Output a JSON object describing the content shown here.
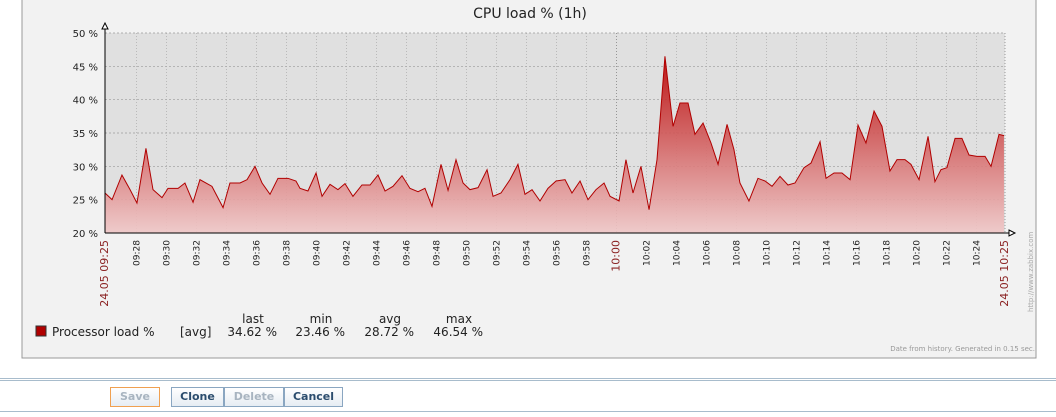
{
  "chart_data": {
    "type": "area",
    "title": "CPU load % (1h)",
    "x": [
      565.9,
      566.37,
      567.03,
      567.57,
      568.03,
      568.63,
      569.1,
      569.7,
      570.1,
      570.77,
      571.23,
      571.77,
      572.23,
      573.03,
      573.77,
      574.23,
      574.9,
      575.37,
      575.9,
      576.37,
      576.9,
      577.43,
      578.1,
      578.63,
      578.9,
      579.43,
      579.97,
      580.37,
      580.9,
      581.43,
      581.9,
      582.43,
      583.03,
      583.57,
      584.1,
      584.57,
      585.1,
      585.7,
      586.23,
      586.77,
      587.23,
      587.7,
      588.3,
      588.77,
      589.3,
      589.77,
      590.23,
      590.77,
      591.37,
      591.77,
      592.3,
      592.9,
      593.43,
      593.9,
      594.37,
      594.9,
      595.43,
      595.97,
      596.57,
      597.03,
      597.57,
      598.1,
      598.63,
      599.17,
      599.57,
      600.17,
      600.63,
      601.1,
      601.63,
      602.17,
      602.7,
      603.23,
      603.77,
      604.23,
      604.77,
      605.23,
      605.77,
      606.3,
      606.77,
      607.37,
      607.83,
      608.23,
      608.83,
      609.43,
      609.9,
      610.37,
      610.9,
      611.43,
      611.9,
      612.5,
      612.97,
      613.57,
      613.97,
      614.5,
      615.03,
      615.57,
      616.1,
      616.63,
      617.17,
      617.7,
      618.23,
      618.7,
      619.23,
      619.63,
      620.17,
      620.77,
      621.23,
      621.63,
      622.03,
      622.57,
      623.03,
      623.5,
      624.03,
      624.57,
      624.97,
      625.5,
      625.83
    ],
    "series": [
      {
        "name": "Processor load %",
        "color": "#b00000",
        "values": [
          26,
          25,
          28.7,
          26.5,
          24.5,
          32.7,
          26.5,
          25.3,
          26.7,
          26.7,
          27.5,
          24.6,
          28,
          27,
          23.8,
          27.5,
          27.5,
          28,
          30,
          27.5,
          25.8,
          28.2,
          28.2,
          27.8,
          26.7,
          26.3,
          29,
          25.5,
          27.3,
          26.5,
          27.4,
          25.5,
          27.2,
          27.2,
          28.7,
          26.3,
          27,
          28.6,
          26.7,
          26.2,
          26.7,
          24,
          30.3,
          26.4,
          31,
          27.5,
          26.5,
          26.8,
          29.5,
          25.5,
          26,
          28,
          30.3,
          25.8,
          26.5,
          24.8,
          26.7,
          27.8,
          28,
          26,
          27.8,
          25,
          26.5,
          27.5,
          25.5,
          24.8,
          31,
          26,
          30,
          23.5,
          31,
          46.5,
          36,
          39.5,
          39.5,
          34.8,
          36.5,
          33.5,
          30.3,
          36.3,
          32.5,
          27.5,
          24.8,
          28.2,
          27.8,
          27,
          28.5,
          27.2,
          27.5,
          29.8,
          30.5,
          33.7,
          28.2,
          29,
          29,
          28,
          36.2,
          33.5,
          38.3,
          36,
          29.3,
          31,
          31,
          30.3,
          28,
          34.5,
          27.7,
          29.5,
          29.8,
          34.2,
          34.2,
          31.7,
          31.5,
          31.5,
          30,
          34.8,
          34.6
        ]
      }
    ],
    "xlim": [
      565.9,
      625.9
    ],
    "xticks": [
      {
        "value": 565.9,
        "label": "24.05 09:25"
      },
      {
        "value": 568,
        "label": "09:28"
      },
      {
        "value": 570,
        "label": "09:30"
      },
      {
        "value": 572,
        "label": "09:32"
      },
      {
        "value": 574,
        "label": "09:34"
      },
      {
        "value": 576,
        "label": "09:36"
      },
      {
        "value": 578,
        "label": "09:38"
      },
      {
        "value": 580,
        "label": "09:40"
      },
      {
        "value": 582,
        "label": "09:42"
      },
      {
        "value": 584,
        "label": "09:44"
      },
      {
        "value": 586,
        "label": "09:46"
      },
      {
        "value": 588,
        "label": "09:48"
      },
      {
        "value": 590,
        "label": "09:50"
      },
      {
        "value": 592,
        "label": "09:52"
      },
      {
        "value": 594,
        "label": "09:54"
      },
      {
        "value": 596,
        "label": "09:56"
      },
      {
        "value": 598,
        "label": "09:58"
      },
      {
        "value": 600,
        "label": "10:00"
      },
      {
        "value": 602,
        "label": "10:02"
      },
      {
        "value": 604,
        "label": "10:04"
      },
      {
        "value": 606,
        "label": "10:06"
      },
      {
        "value": 608,
        "label": "10:08"
      },
      {
        "value": 610,
        "label": "10:10"
      },
      {
        "value": 612,
        "label": "10:12"
      },
      {
        "value": 614,
        "label": "10:14"
      },
      {
        "value": 616,
        "label": "10:16"
      },
      {
        "value": 618,
        "label": "10:18"
      },
      {
        "value": 620,
        "label": "10:20"
      },
      {
        "value": 622,
        "label": "10:22"
      },
      {
        "value": 624,
        "label": "10:24"
      },
      {
        "value": 625.9,
        "label": "24.05 10:25"
      }
    ],
    "ylim": [
      20,
      50
    ],
    "yticks": [
      {
        "value": 20,
        "label": "20 %"
      },
      {
        "value": 25,
        "label": "25 %"
      },
      {
        "value": 30,
        "label": "30 %"
      },
      {
        "value": 35,
        "label": "35 %"
      },
      {
        "value": 40,
        "label": "40 %"
      },
      {
        "value": 45,
        "label": "45 %"
      },
      {
        "value": 50,
        "label": "50 %"
      }
    ],
    "grid": true
  },
  "legend": {
    "columns": [
      "last",
      "min",
      "avg",
      "max"
    ],
    "function": "[avg]",
    "stats": [
      "34.62 %",
      "23.46 %",
      "28.72 %",
      "46.54 %"
    ]
  },
  "footer": "Date from history. Generated in 0.15 sec.",
  "watermark": "http://www.zabbix.com",
  "buttons": [
    "Save",
    "Clone",
    "Delete",
    "Cancel"
  ]
}
